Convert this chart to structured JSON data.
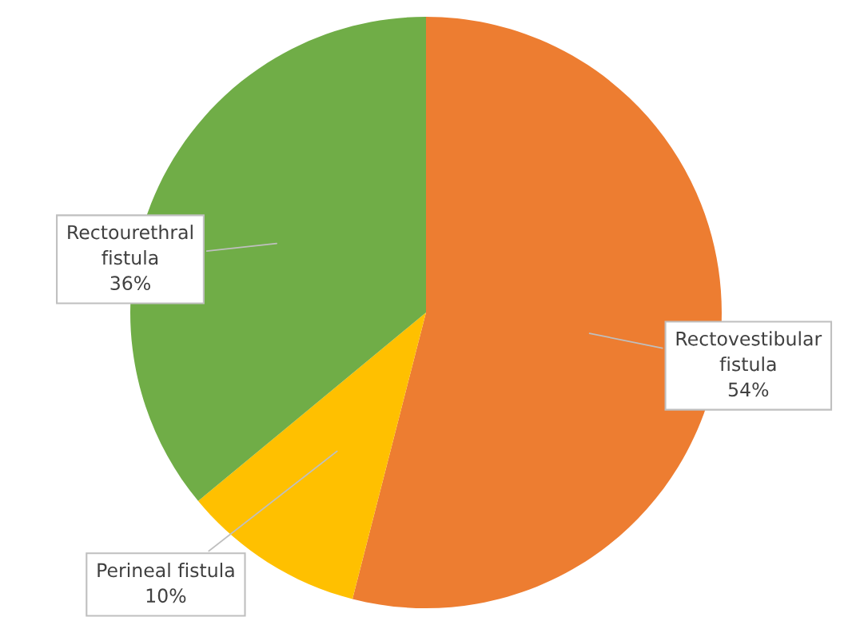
{
  "chart_data": {
    "type": "pie",
    "categories": [
      "Rectovestibular fistula",
      "Perineal fistula",
      "Rectourethral fistula"
    ],
    "values": [
      54,
      10,
      36
    ],
    "colors": [
      "#ed7d31",
      "#ffc000",
      "#70ad47"
    ],
    "value_labels": [
      "54%",
      "10%",
      "36%"
    ],
    "legend": false
  }
}
